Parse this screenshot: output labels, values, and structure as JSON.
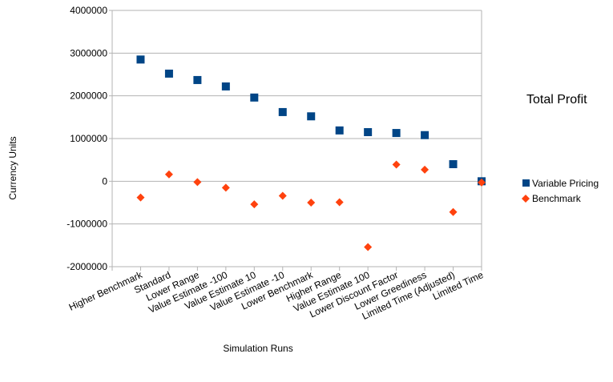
{
  "chart_data": {
    "type": "scatter",
    "title": "Total Profit",
    "xlabel": "Simulation Runs",
    "ylabel": "Currency Units",
    "ylim": [
      -2000000,
      4000000
    ],
    "yticks": [
      -2000000,
      -1000000,
      0,
      1000000,
      2000000,
      3000000,
      4000000
    ],
    "ytick_labels": [
      "-2000000",
      "-1000000",
      "0",
      "1000000",
      "2000000",
      "3000000",
      "4000000"
    ],
    "grid": true,
    "legend_position": "right",
    "categories": [
      "Higher Benchmark",
      "Standard",
      "Lower Range",
      "Value Estimate -100",
      "Value Estimate 10",
      "Value Estimate -10",
      "Lower Benchmark",
      "Higher Range",
      "Value Estimate 100",
      "Lower Discount Factor",
      "Lower Greediness",
      "Limited Time (Adjusted)",
      "Limited Time"
    ],
    "series": [
      {
        "name": "Variable Pricing",
        "marker": "square",
        "color": "#004586",
        "values": [
          2850000,
          2520000,
          2370000,
          2220000,
          1960000,
          1620000,
          1520000,
          1190000,
          1150000,
          1130000,
          1080000,
          400000,
          0
        ]
      },
      {
        "name": "Benchmark",
        "marker": "diamond",
        "color": "#ff420e",
        "values": [
          -380000,
          160000,
          -20000,
          -150000,
          -540000,
          -340000,
          -500000,
          -490000,
          -1540000,
          390000,
          270000,
          -720000,
          -30000
        ]
      }
    ]
  }
}
